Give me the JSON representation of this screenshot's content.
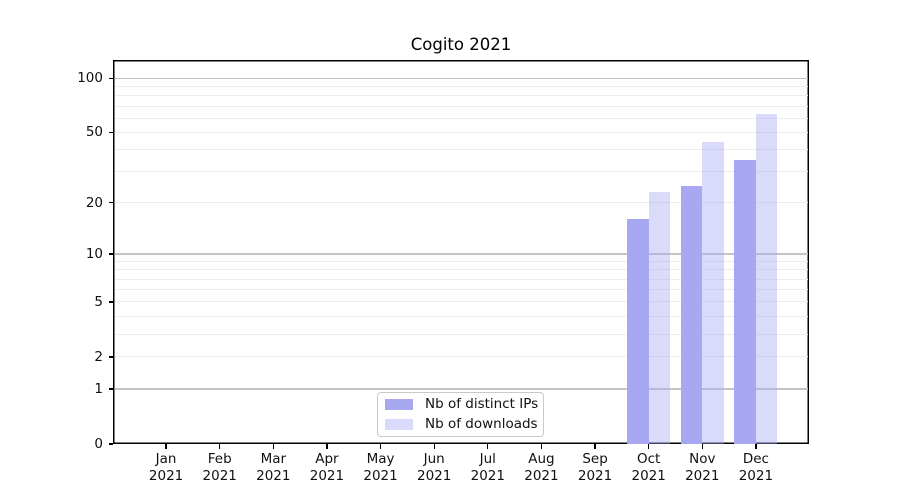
{
  "title": "Cogito 2021",
  "chart_data": {
    "type": "bar",
    "title": "Cogito 2021",
    "categories": [
      "Jan 2021",
      "Feb 2021",
      "Mar 2021",
      "Apr 2021",
      "May 2021",
      "Jun 2021",
      "Jul 2021",
      "Aug 2021",
      "Sep 2021",
      "Oct 2021",
      "Nov 2021",
      "Dec 2021"
    ],
    "series": [
      {
        "name": "Nb of distinct IPs",
        "color": "#a8a8f2",
        "values": [
          0,
          0,
          0,
          0,
          0,
          0,
          0,
          0,
          0,
          16,
          25,
          35
        ]
      },
      {
        "name": "Nb of downloads",
        "color": "rgba(168,168,242,0.42)",
        "values": [
          0,
          0,
          0,
          0,
          0,
          0,
          0,
          0,
          0,
          23,
          44,
          63
        ]
      }
    ],
    "yscale": "log1p",
    "ylim": [
      0,
      126
    ],
    "yticks": [
      0,
      1,
      2,
      5,
      10,
      20,
      50,
      100
    ],
    "major_gridlines": [
      1,
      10,
      100
    ],
    "minor_gridlines": [
      2,
      3,
      4,
      5,
      6,
      7,
      8,
      9,
      20,
      30,
      40,
      50,
      60,
      70,
      80,
      90
    ],
    "grid": "on",
    "legend_position": "lower center inside",
    "xlabel": "",
    "ylabel": ""
  },
  "colors": {
    "background": "#ffffff",
    "axis": "#000000",
    "grid_major": "#c4c4c4",
    "grid_minor": "#ececec",
    "legend_border": "#c9c9c9",
    "text": "#111111"
  }
}
